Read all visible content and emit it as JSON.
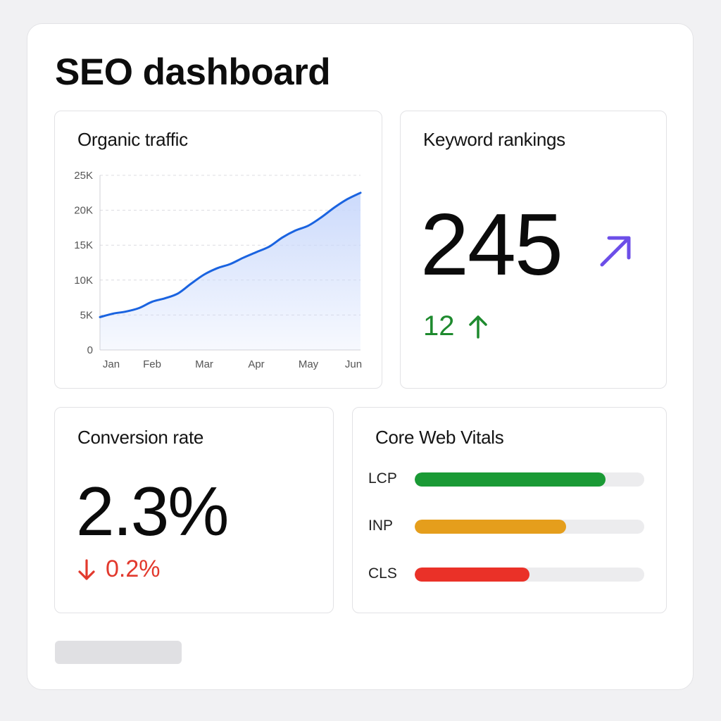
{
  "dashboard": {
    "title": "SEO dashboard"
  },
  "traffic": {
    "title": "Organic traffic"
  },
  "chart_data": {
    "type": "area",
    "title": "Organic traffic",
    "categories": [
      "Jan",
      "Feb",
      "Mar",
      "Apr",
      "May",
      "Jun"
    ],
    "y_ticks": [
      "0",
      "5K",
      "10K",
      "15K",
      "20K",
      "25K"
    ],
    "ylim": [
      0,
      25000
    ],
    "x": [
      0,
      0.25,
      0.5,
      0.75,
      1,
      1.25,
      1.5,
      1.75,
      2,
      2.25,
      2.5,
      2.75,
      3,
      3.25,
      3.5,
      3.75,
      4,
      4.25,
      4.5,
      4.75,
      5
    ],
    "values": [
      4700,
      5200,
      5500,
      6000,
      6900,
      7400,
      8100,
      9500,
      10800,
      11700,
      12300,
      13200,
      14000,
      14800,
      16100,
      17100,
      17800,
      19000,
      20400,
      21600,
      22500
    ],
    "series": [
      {
        "values": [
          4700,
          5200,
          5500,
          6000,
          6900,
          7400,
          8100,
          9500,
          10800,
          11700,
          12300,
          13200,
          14000,
          14800,
          16100,
          17100,
          17800,
          19000,
          20400,
          21600,
          22500
        ]
      }
    ],
    "grid": true,
    "line_color": "#1a63e0",
    "fill_color": "#c9d8fb"
  },
  "keywords": {
    "title": "Keyword rankings",
    "value": "245",
    "trend_icon": "arrow-up-right-icon",
    "trend_color": "#6c4ee8",
    "delta": "12",
    "delta_icon": "arrow-up-icon",
    "delta_color": "#1e8a2e"
  },
  "conversion": {
    "title": "Conversion rate",
    "value": "2.3%",
    "delta": "0.2%",
    "delta_icon": "arrow-down-icon",
    "delta_color": "#e2392d"
  },
  "vitals": {
    "title": "Core Web Vitals",
    "items": [
      {
        "label": "LCP",
        "level": 0.83,
        "color": "#1a9a35"
      },
      {
        "label": "INP",
        "level": 0.66,
        "color": "#e59e1c"
      },
      {
        "label": "CLS",
        "level": 0.5,
        "color": "#ea3128"
      }
    ]
  }
}
